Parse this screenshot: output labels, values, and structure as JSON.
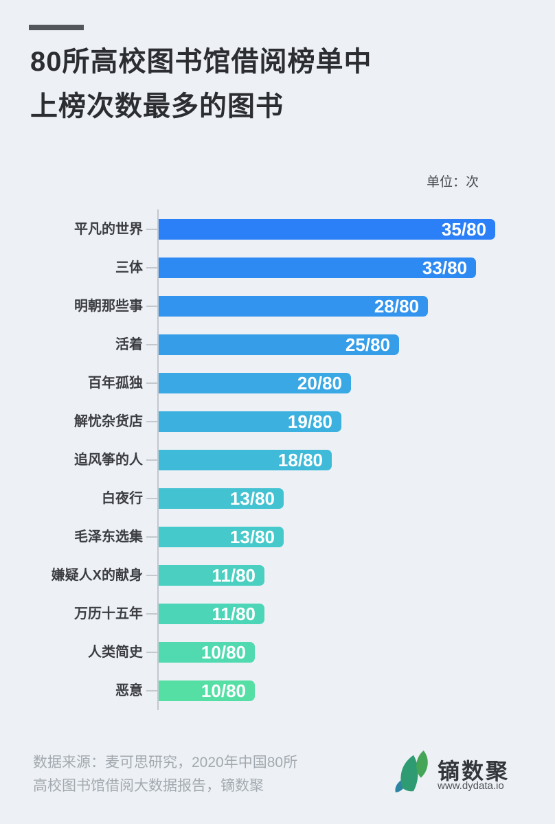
{
  "page": {
    "background": "#edf1f5"
  },
  "header": {
    "dash_color": "#53565b",
    "title_line1": "80所高校图书馆借阅榜单中",
    "title_line2": "上榜次数最多的图书"
  },
  "unit_label": "单位：次",
  "chart_data": {
    "type": "bar",
    "orientation": "horizontal",
    "title": "80所高校图书馆借阅榜单中上榜次数最多的图书",
    "unit": "次",
    "max_value": 80,
    "xlim": [
      0,
      80
    ],
    "grid": false,
    "legend": false,
    "categories": [
      "平凡的世界",
      "三体",
      "明朝那些事",
      "活着",
      "百年孤独",
      "解忧杂货店",
      "追风筝的人",
      "白夜行",
      "毛泽东选集",
      "嫌疑人X的献身",
      "万历十五年",
      "人类简史",
      "恶意"
    ],
    "values": [
      35,
      33,
      28,
      25,
      20,
      19,
      18,
      13,
      13,
      11,
      11,
      10,
      10
    ],
    "value_labels": [
      "35/80",
      "33/80",
      "28/80",
      "25/80",
      "20/80",
      "19/80",
      "18/80",
      "13/80",
      "13/80",
      "11/80",
      "11/80",
      "10/80",
      "10/80"
    ],
    "bar_colors": [
      "#2b80f7",
      "#2e8af3",
      "#3294ee",
      "#369ee9",
      "#39a8e4",
      "#3cb1df",
      "#40bad9",
      "#43c2d2",
      "#46c9ca",
      "#4acfc1",
      "#4dd5b8",
      "#51daaf",
      "#56dfa5"
    ],
    "axis_color": "#c3c8ce",
    "label_color": "#3b3d42",
    "value_text_color": "#ffffff"
  },
  "footer": {
    "source_line1": "数据来源：麦可思研究，2020年中国80所",
    "source_line2": "高校图书馆借阅大数据报告，镝数聚",
    "logo": {
      "name": "镝数聚",
      "url": "www.dydata.io",
      "leaf_green": "#45a557",
      "leaf_teal": "#2f9b72",
      "leaf_blue": "#2d84a3"
    }
  }
}
